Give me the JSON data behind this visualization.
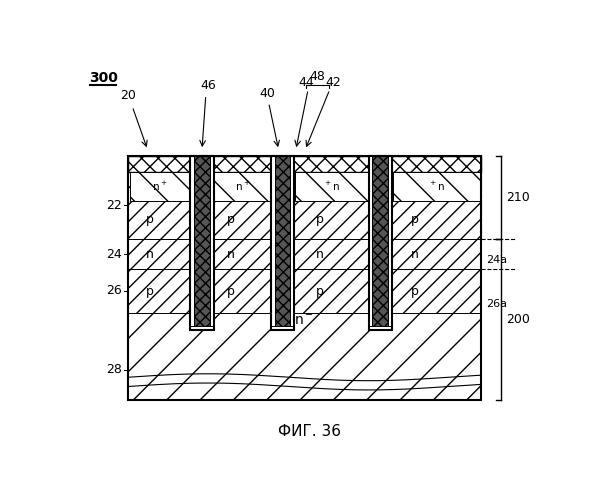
{
  "title": "ФИГ. 36",
  "label_300": "300",
  "label_20": "20",
  "label_22": "22",
  "label_24": "24",
  "label_26": "26",
  "label_28": "28",
  "label_40": "40",
  "label_42": "42",
  "label_44": "44",
  "label_46": "46",
  "label_48": "48",
  "label_200": "200",
  "label_210": "210",
  "label_24a": "24a",
  "label_26a": "26a",
  "bg_color": "#ffffff"
}
